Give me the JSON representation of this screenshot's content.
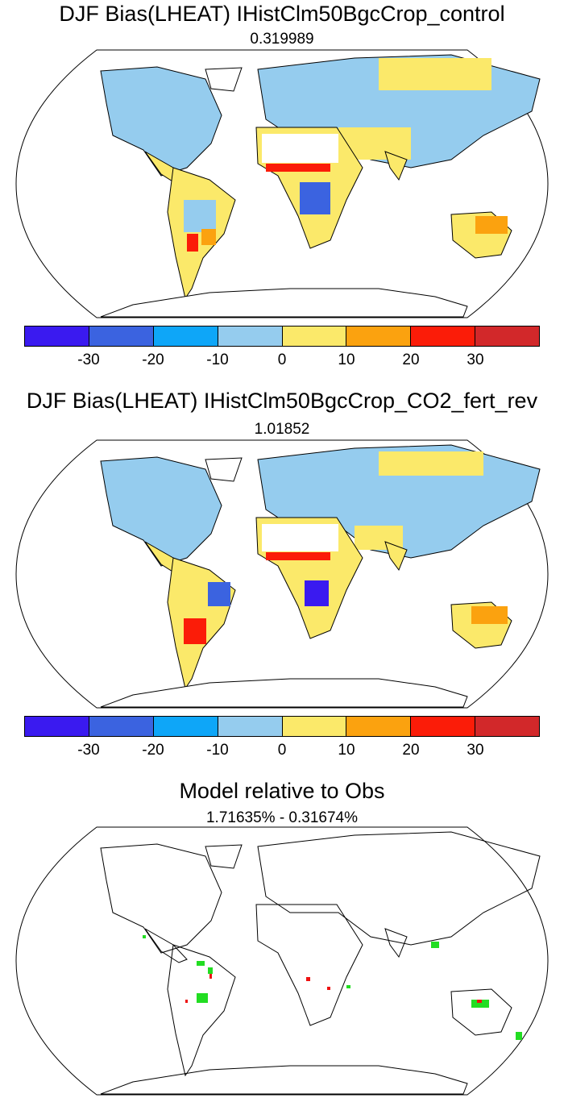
{
  "panels": [
    {
      "title": "DJF Bias(LHEAT) IHistClm50BgcCrop_control",
      "subtitle": "0.319989"
    },
    {
      "title": "DJF Bias(LHEAT) IHistClm50BgcCrop_CO2_fert_rev",
      "subtitle": "1.01852"
    },
    {
      "title": "Model relative to Obs",
      "subtitle": "1.71635% - 0.31674%"
    }
  ],
  "colorbar": {
    "colors": [
      "#3a1af0",
      "#3b63e0",
      "#0ea6f8",
      "#95ccee",
      "#fbe96a",
      "#fba20f",
      "#fb1c08",
      "#d2282a"
    ],
    "labels": [
      "-30",
      "-20",
      "-10",
      "0",
      "10",
      "20",
      "30"
    ]
  }
}
